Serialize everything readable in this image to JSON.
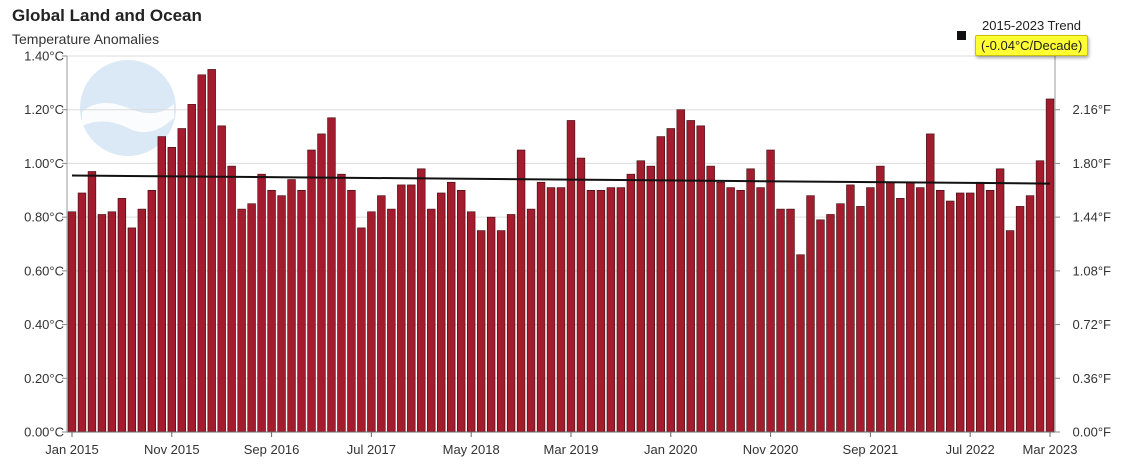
{
  "chart_data": {
    "type": "bar",
    "title": "Global Land and Ocean",
    "subtitle": "Temperature Anomalies",
    "ylim": [
      0,
      1.4
    ],
    "y_ticks_left": [
      "0.00°C",
      "0.20°C",
      "0.40°C",
      "0.60°C",
      "0.80°C",
      "1.00°C",
      "1.20°C",
      "1.40°C"
    ],
    "y_ticks_right": [
      "0.00°F",
      "0.36°F",
      "0.72°F",
      "1.08°F",
      "1.44°F",
      "1.80°F",
      "2.16°F"
    ],
    "x_tick_labels": [
      {
        "index": 0,
        "label": "Jan 2015"
      },
      {
        "index": 10,
        "label": "Nov 2015"
      },
      {
        "index": 20,
        "label": "Sep 2016"
      },
      {
        "index": 30,
        "label": "Jul 2017"
      },
      {
        "index": 40,
        "label": "May 2018"
      },
      {
        "index": 50,
        "label": "Mar 2019"
      },
      {
        "index": 60,
        "label": "Jan 2020"
      },
      {
        "index": 70,
        "label": "Nov 2020"
      },
      {
        "index": 80,
        "label": "Sep 2021"
      },
      {
        "index": 90,
        "label": "Jul 2022"
      },
      {
        "index": 98,
        "label": "Mar 2023"
      }
    ],
    "first_month": "Jan 2015",
    "last_month": "Mar 2023",
    "values": [
      0.82,
      0.89,
      0.97,
      0.81,
      0.82,
      0.87,
      0.76,
      0.83,
      0.9,
      1.1,
      1.06,
      1.13,
      1.22,
      1.33,
      1.35,
      1.14,
      0.99,
      0.83,
      0.85,
      0.96,
      0.9,
      0.88,
      0.94,
      0.9,
      1.05,
      1.11,
      1.17,
      0.96,
      0.9,
      0.76,
      0.82,
      0.88,
      0.83,
      0.92,
      0.92,
      0.98,
      0.83,
      0.89,
      0.93,
      0.9,
      0.82,
      0.75,
      0.8,
      0.75,
      0.81,
      1.05,
      0.83,
      0.93,
      0.91,
      0.91,
      1.16,
      1.02,
      0.9,
      0.9,
      0.91,
      0.91,
      0.96,
      1.01,
      0.99,
      1.1,
      1.13,
      1.2,
      1.16,
      1.14,
      0.99,
      0.93,
      0.91,
      0.9,
      0.98,
      0.91,
      1.05,
      0.83,
      0.83,
      0.66,
      0.88,
      0.79,
      0.81,
      0.85,
      0.92,
      0.84,
      0.91,
      0.99,
      0.93,
      0.87,
      0.93,
      0.91,
      1.11,
      0.9,
      0.86,
      0.89,
      0.89,
      0.93,
      0.9,
      0.98,
      0.75,
      0.84,
      0.88,
      1.01,
      1.24
    ],
    "trend": {
      "label": "2015-2023 Trend",
      "value_label": "(-0.04°C/Decade)",
      "start": 0.955,
      "end": 0.925
    },
    "colors": {
      "bar": "#a31c2e",
      "bar_stroke": "#3a0a10",
      "trend_line": "#111111",
      "grid": "#dcdcdc",
      "badge": "#ffff33"
    },
    "grid": true,
    "legend_position": "top-right",
    "watermark": "NOAA"
  }
}
